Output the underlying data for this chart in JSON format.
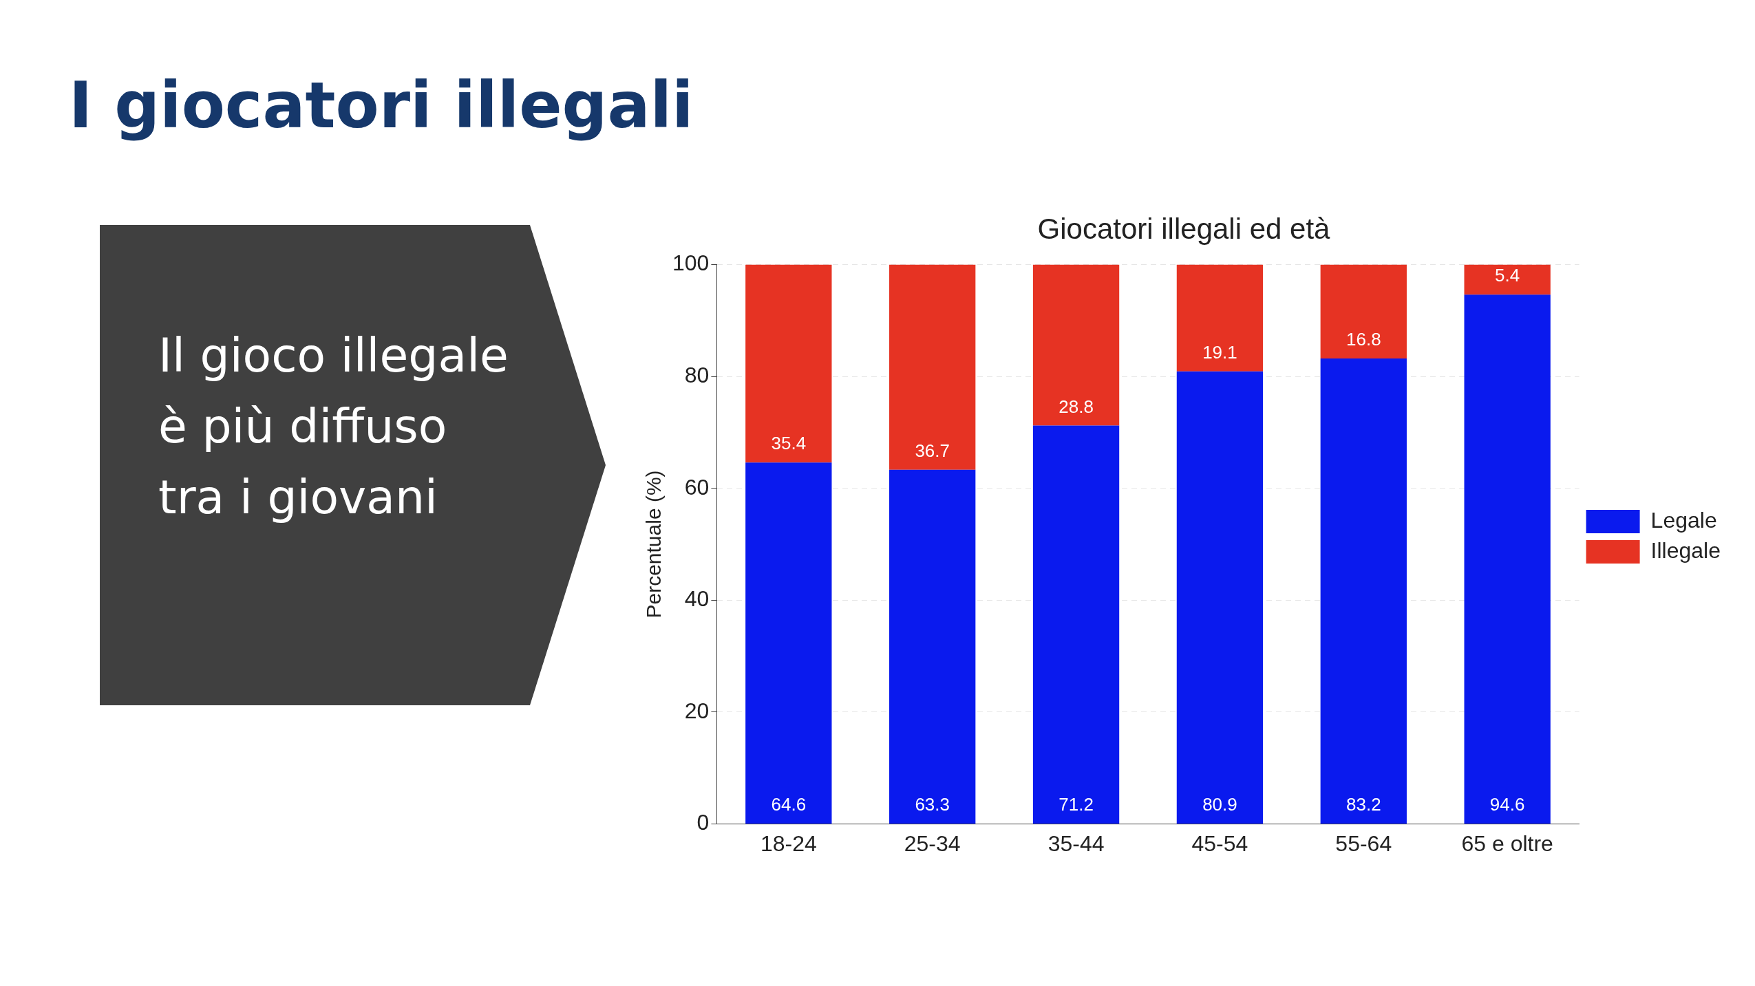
{
  "chart_data": {
    "type": "bar",
    "title": "Giocatori illegali ed età",
    "ylabel": "Percentuale (%)",
    "categories": [
      "18-24",
      "25-34",
      "35-44",
      "45-54",
      "55-64",
      "65 e oltre"
    ],
    "series": [
      {
        "name": "Legale",
        "color": "#0a1aee",
        "values": [
          64.6,
          63.3,
          71.2,
          80.9,
          83.2,
          94.6
        ]
      },
      {
        "name": "Illegale",
        "color": "#e63323",
        "values": [
          35.4,
          36.7,
          28.8,
          19.1,
          16.8,
          5.4
        ]
      }
    ],
    "stacked": true,
    "ylim": [
      0,
      100
    ],
    "yticks": [
      0,
      20,
      40,
      60,
      80,
      100
    ],
    "grid": "y",
    "legend": "right",
    "data_labels": true,
    "annotations": [
      "I giocatori illegali",
      "Il gioco illegale è più diffuso tra i giovani"
    ]
  }
}
